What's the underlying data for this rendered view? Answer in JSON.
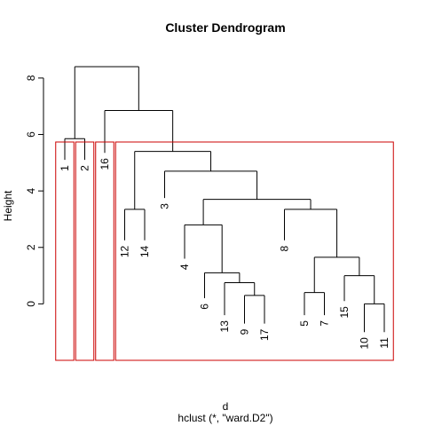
{
  "chart_data": {
    "type": "dendrogram",
    "title": "Cluster Dendrogram",
    "xlabel": "d",
    "sub": "hclust (*, \"ward.D2\")",
    "ylabel": "Height",
    "ylim": [
      -2,
      8.5
    ],
    "yticks": [
      0,
      2,
      4,
      6,
      8
    ],
    "order": [
      "1",
      "2",
      "16",
      "12",
      "14",
      "3",
      "4",
      "6",
      "13",
      "9",
      "17",
      "8",
      "5",
      "7",
      "15",
      "10",
      "11"
    ],
    "leaf_heights": {
      "1": 5.1,
      "2": 5.1,
      "16": 5.35,
      "12": 2.25,
      "14": 2.25,
      "3": 3.75,
      "4": 1.6,
      "6": 0.2,
      "13": -0.4,
      "9": -0.7,
      "17": -0.7,
      "8": 2.25,
      "5": -0.4,
      "7": -0.4,
      "15": 0.1,
      "10": -1.0,
      "11": -1.0
    },
    "merges": [
      {
        "a": "9",
        "b": "17",
        "height": 0.3
      },
      {
        "a": "10",
        "b": "11",
        "height": 0.0
      },
      {
        "a": "5",
        "b": "7",
        "height": 0.4
      },
      {
        "a": "13",
        "b": "9+17",
        "height": 0.75
      },
      {
        "a": "15",
        "b": "10+11",
        "height": 1.0
      },
      {
        "a": "6",
        "b": "13+9+17",
        "height": 1.1
      },
      {
        "a": "5+7",
        "b": "15+10+11",
        "height": 1.65
      },
      {
        "a": "4",
        "b": "6+13+9+17",
        "height": 2.8
      },
      {
        "a": "12",
        "b": "14",
        "height": 3.35
      },
      {
        "a": "8",
        "b": "5+7+15+10+11",
        "height": 3.35
      },
      {
        "a": "4+6+13+9+17",
        "b": "8+5+7+15+10+11",
        "height": 3.7
      },
      {
        "a": "3",
        "b": "4+...+11",
        "height": 4.7
      },
      {
        "a": "12+14",
        "b": "3+...+11",
        "height": 5.4
      },
      {
        "a": "1",
        "b": "2",
        "height": 5.85
      },
      {
        "a": "16",
        "b": "12+...+11",
        "height": 6.85
      },
      {
        "a": "1+2",
        "b": "16+...+11",
        "height": 8.4
      }
    ],
    "rect_hclust": {
      "k": 4,
      "color": "#cc0000",
      "clusters": [
        [
          "1"
        ],
        [
          "2"
        ],
        [
          "16"
        ],
        [
          "12",
          "14",
          "3",
          "4",
          "6",
          "13",
          "9",
          "17",
          "8",
          "5",
          "7",
          "15",
          "10",
          "11"
        ]
      ]
    }
  }
}
